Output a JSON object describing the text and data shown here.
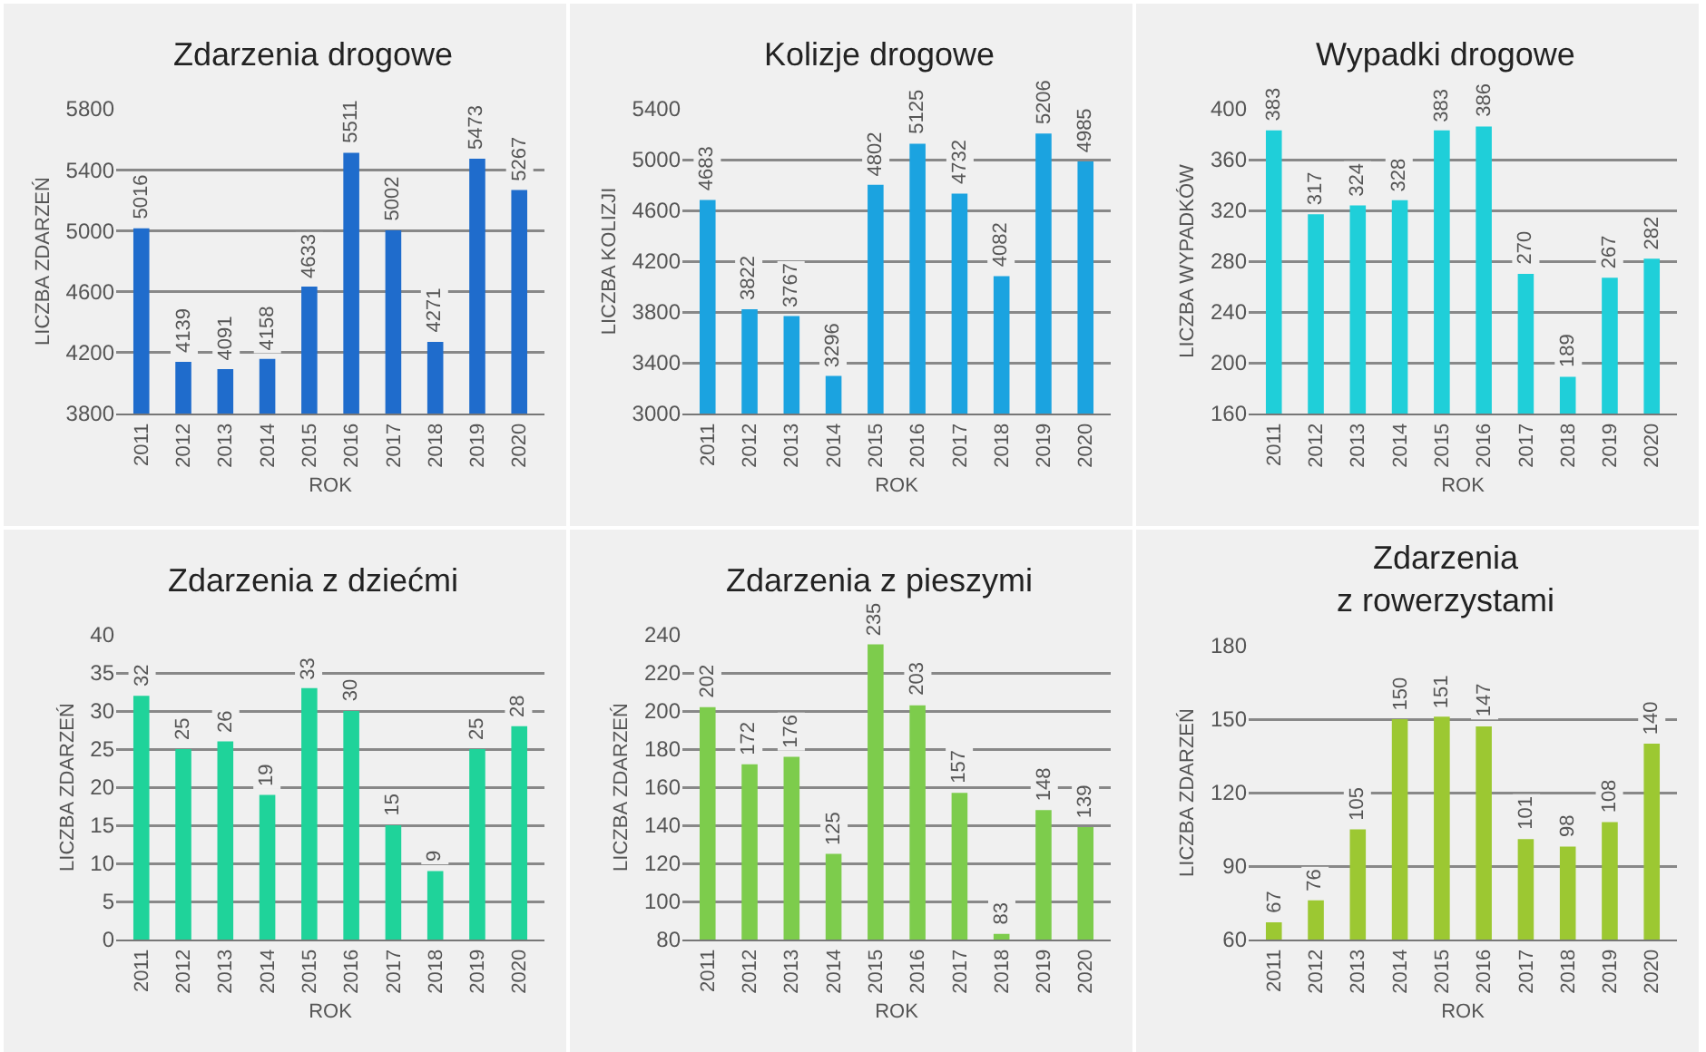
{
  "chart_data": [
    {
      "type": "bar",
      "title": "Zdarzenia drogowe",
      "xlabel": "ROK",
      "ylabel": "LICZBA ZDARZEŃ",
      "categories": [
        "2011",
        "2012",
        "2013",
        "2014",
        "2015",
        "2016",
        "2017",
        "2018",
        "2019",
        "2020"
      ],
      "values": [
        5016,
        4139,
        4091,
        4158,
        4633,
        5511,
        5002,
        4271,
        5473,
        5267
      ],
      "color": "#1f6ccc",
      "ylim": [
        3800,
        5800
      ],
      "yticks": [
        3800,
        4200,
        4600,
        5000,
        5400,
        5800
      ],
      "grid": "y",
      "data_labels": true
    },
    {
      "type": "bar",
      "title": "Kolizje drogowe",
      "xlabel": "ROK",
      "ylabel": "LICZBA KOLIZJI",
      "categories": [
        "2011",
        "2012",
        "2013",
        "2014",
        "2015",
        "2016",
        "2017",
        "2018",
        "2019",
        "2020"
      ],
      "values": [
        4683,
        3822,
        3767,
        3296,
        4802,
        5125,
        4732,
        4082,
        5206,
        4985
      ],
      "color": "#1ba3e0",
      "ylim": [
        3000,
        5400
      ],
      "yticks": [
        3000,
        3400,
        3800,
        4200,
        4600,
        5000,
        5400
      ],
      "grid": "y",
      "data_labels": true
    },
    {
      "type": "bar",
      "title": "Wypadki drogowe",
      "xlabel": "ROK",
      "ylabel": "LICZBA WYPADKÓW",
      "categories": [
        "2011",
        "2012",
        "2013",
        "2014",
        "2015",
        "2016",
        "2017",
        "2018",
        "2019",
        "2020"
      ],
      "values": [
        383,
        317,
        324,
        328,
        383,
        386,
        270,
        189,
        267,
        282
      ],
      "color": "#1fcfd9",
      "ylim": [
        160,
        400
      ],
      "yticks": [
        160,
        200,
        240,
        280,
        320,
        360,
        400
      ],
      "grid": "y",
      "data_labels": true
    },
    {
      "type": "bar",
      "title": "Zdarzenia z dziećmi",
      "xlabel": "ROK",
      "ylabel": "LICZBA ZDARZEŃ",
      "categories": [
        "2011",
        "2012",
        "2013",
        "2014",
        "2015",
        "2016",
        "2017",
        "2018",
        "2019",
        "2020"
      ],
      "values": [
        32,
        25,
        26,
        19,
        33,
        30,
        15,
        9,
        25,
        28
      ],
      "color": "#1fd39a",
      "ylim": [
        0,
        40
      ],
      "yticks": [
        0,
        5,
        10,
        15,
        20,
        25,
        30,
        35,
        40
      ],
      "grid": "y",
      "data_labels": true
    },
    {
      "type": "bar",
      "title": "Zdarzenia z pieszymi",
      "xlabel": "ROK",
      "ylabel": "LICZBA ZDARZEŃ",
      "categories": [
        "2011",
        "2012",
        "2013",
        "2014",
        "2015",
        "2016",
        "2017",
        "2018",
        "2019",
        "2020"
      ],
      "values": [
        202,
        172,
        176,
        125,
        235,
        203,
        157,
        83,
        148,
        139
      ],
      "color": "#7dcc4c",
      "ylim": [
        80,
        240
      ],
      "yticks": [
        80,
        100,
        120,
        140,
        160,
        180,
        200,
        220,
        240
      ],
      "grid": "y",
      "data_labels": true
    },
    {
      "type": "bar",
      "title": "Zdarzenia\nz rowerzystami",
      "xlabel": "ROK",
      "ylabel": "LICZBA ZDARZEŃ",
      "categories": [
        "2011",
        "2012",
        "2013",
        "2014",
        "2015",
        "2016",
        "2017",
        "2018",
        "2019",
        "2020"
      ],
      "values": [
        67,
        76,
        105,
        150,
        151,
        147,
        101,
        98,
        108,
        140
      ],
      "color": "#9cc832",
      "ylim": [
        60,
        180
      ],
      "yticks": [
        60,
        90,
        120,
        150,
        180
      ],
      "grid": "y",
      "data_labels": true
    }
  ]
}
